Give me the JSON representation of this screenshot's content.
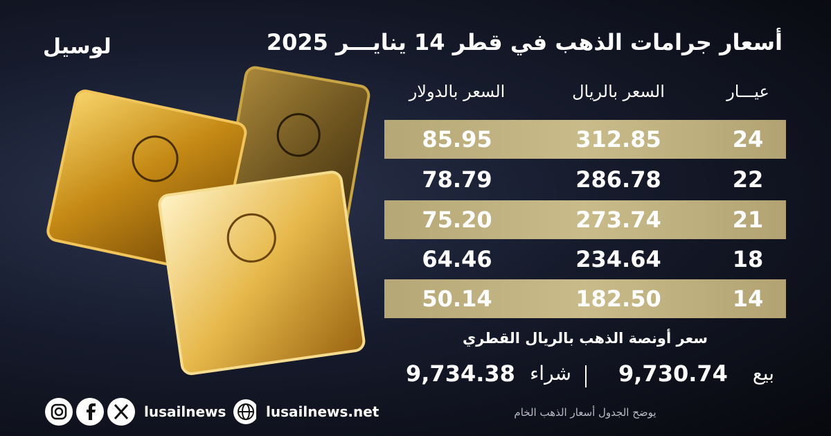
{
  "brand": "لوسيل",
  "title": "أسعار جرامات الذهب في قطر 14 ينايـــر 2025",
  "table": {
    "headers": [
      "عيـــار",
      "السعر بالريال",
      "السعر بالدولار"
    ],
    "rows": [
      [
        "24",
        "312.85",
        "85.95"
      ],
      [
        "22",
        "286.78",
        "78.79"
      ],
      [
        "21",
        "273.74",
        "75.20"
      ],
      [
        "18",
        "234.64",
        "64.46"
      ],
      [
        "14",
        "182.50",
        "50.14"
      ]
    ]
  },
  "ounce": {
    "title": "سعر أونصة الذهب بالريال القطري",
    "sell_label": "بيع",
    "sell_value": "9,730.74",
    "buy_label": "شراء",
    "buy_value": "9,734.38"
  },
  "footer": {
    "handle": "lusailnews",
    "website": "lusailnews.net",
    "note": "يوضح الجدول أسعار الذهب الخام"
  }
}
